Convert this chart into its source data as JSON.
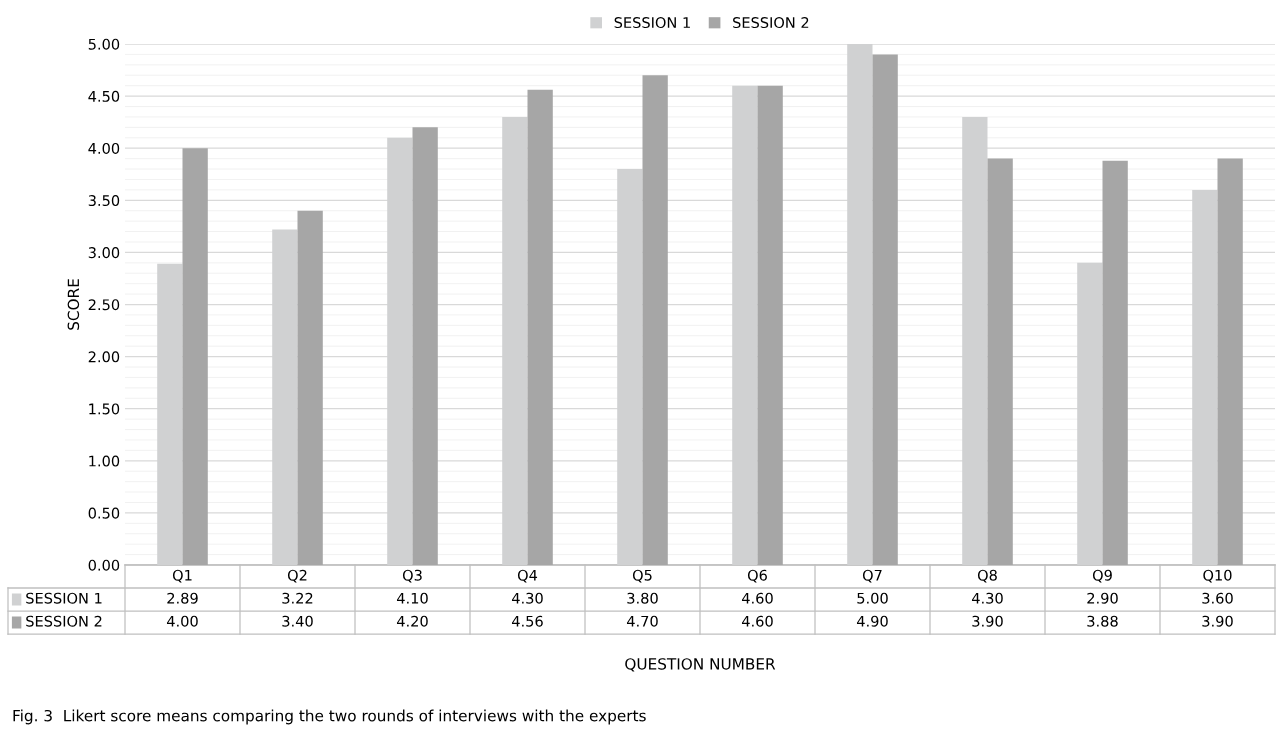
{
  "chart_data": {
    "type": "bar",
    "xlabel": "QUESTION NUMBER",
    "ylabel": "SCORE",
    "categories": [
      "Q1",
      "Q2",
      "Q3",
      "Q4",
      "Q5",
      "Q6",
      "Q7",
      "Q8",
      "Q9",
      "Q10"
    ],
    "series": [
      {
        "name": "SESSION 1",
        "color": "#d0d1d2",
        "values": [
          2.89,
          3.22,
          4.1,
          4.3,
          3.8,
          4.6,
          5.0,
          4.3,
          2.9,
          3.6
        ],
        "value_labels": [
          "2.89",
          "3.22",
          "4.10",
          "4.30",
          "3.80",
          "4.60",
          "5.00",
          "4.30",
          "2.90",
          "3.60"
        ]
      },
      {
        "name": "SESSION 2",
        "color": "#a6a6a6",
        "values": [
          4.0,
          3.4,
          4.2,
          4.56,
          4.7,
          4.6,
          4.9,
          3.9,
          3.88,
          3.9
        ],
        "value_labels": [
          "4.00",
          "3.40",
          "4.20",
          "4.56",
          "4.70",
          "4.60",
          "4.90",
          "3.90",
          "3.88",
          "3.90"
        ]
      }
    ],
    "ylim": [
      0,
      5
    ],
    "yticks": [
      {
        "value": 0,
        "label": "0.00"
      },
      {
        "value": 0.5,
        "label": "0.50"
      },
      {
        "value": 1,
        "label": "1.00"
      },
      {
        "value": 1.5,
        "label": "1.50"
      },
      {
        "value": 2,
        "label": "2.00"
      },
      {
        "value": 2.5,
        "label": "2.50"
      },
      {
        "value": 3,
        "label": "3.00"
      },
      {
        "value": 3.5,
        "label": "3.50"
      },
      {
        "value": 4,
        "label": "4.00"
      },
      {
        "value": 4.5,
        "label": "4.50"
      },
      {
        "value": 5,
        "label": "5.00"
      }
    ],
    "grid": "y",
    "legend": "top",
    "annotations": [
      "Fig. 3  Likert score means comparing the two rounds of interviews with the experts"
    ]
  }
}
